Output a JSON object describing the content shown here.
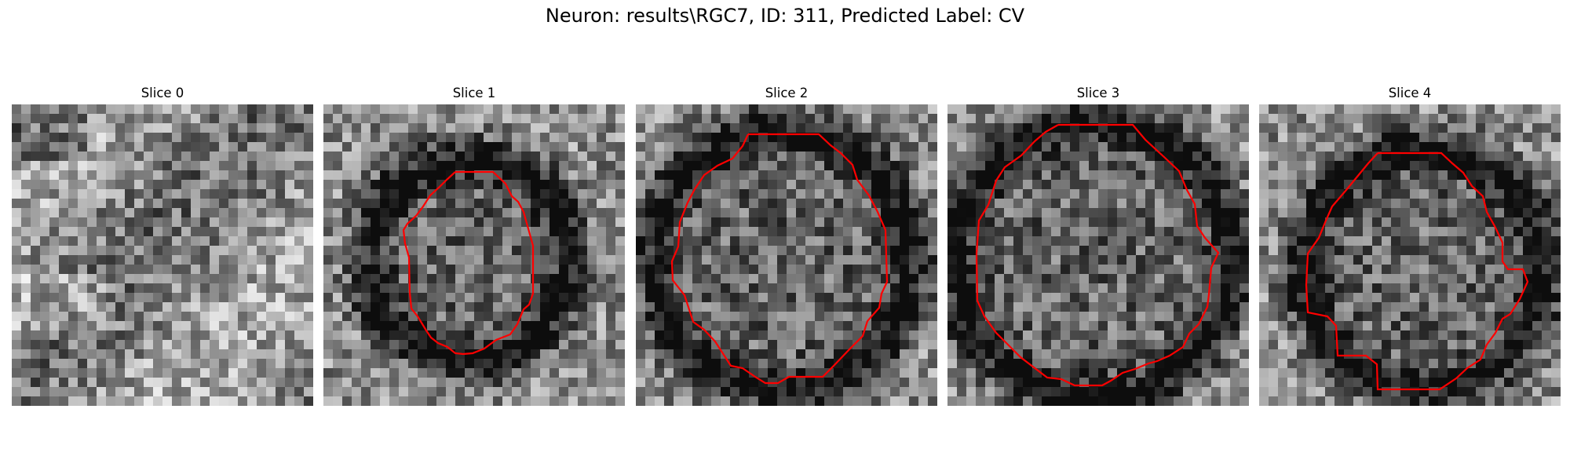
{
  "figure": {
    "title": "Neuron: results\\RGC7, ID: 311, Predicted Label: CV",
    "outline_color": "#ff0000"
  },
  "panels": [
    {
      "title": "Slice 0",
      "has_outline": false
    },
    {
      "title": "Slice 1",
      "has_outline": true
    },
    {
      "title": "Slice 2",
      "has_outline": true
    },
    {
      "title": "Slice 3",
      "has_outline": true
    },
    {
      "title": "Slice 4",
      "has_outline": true
    }
  ]
}
